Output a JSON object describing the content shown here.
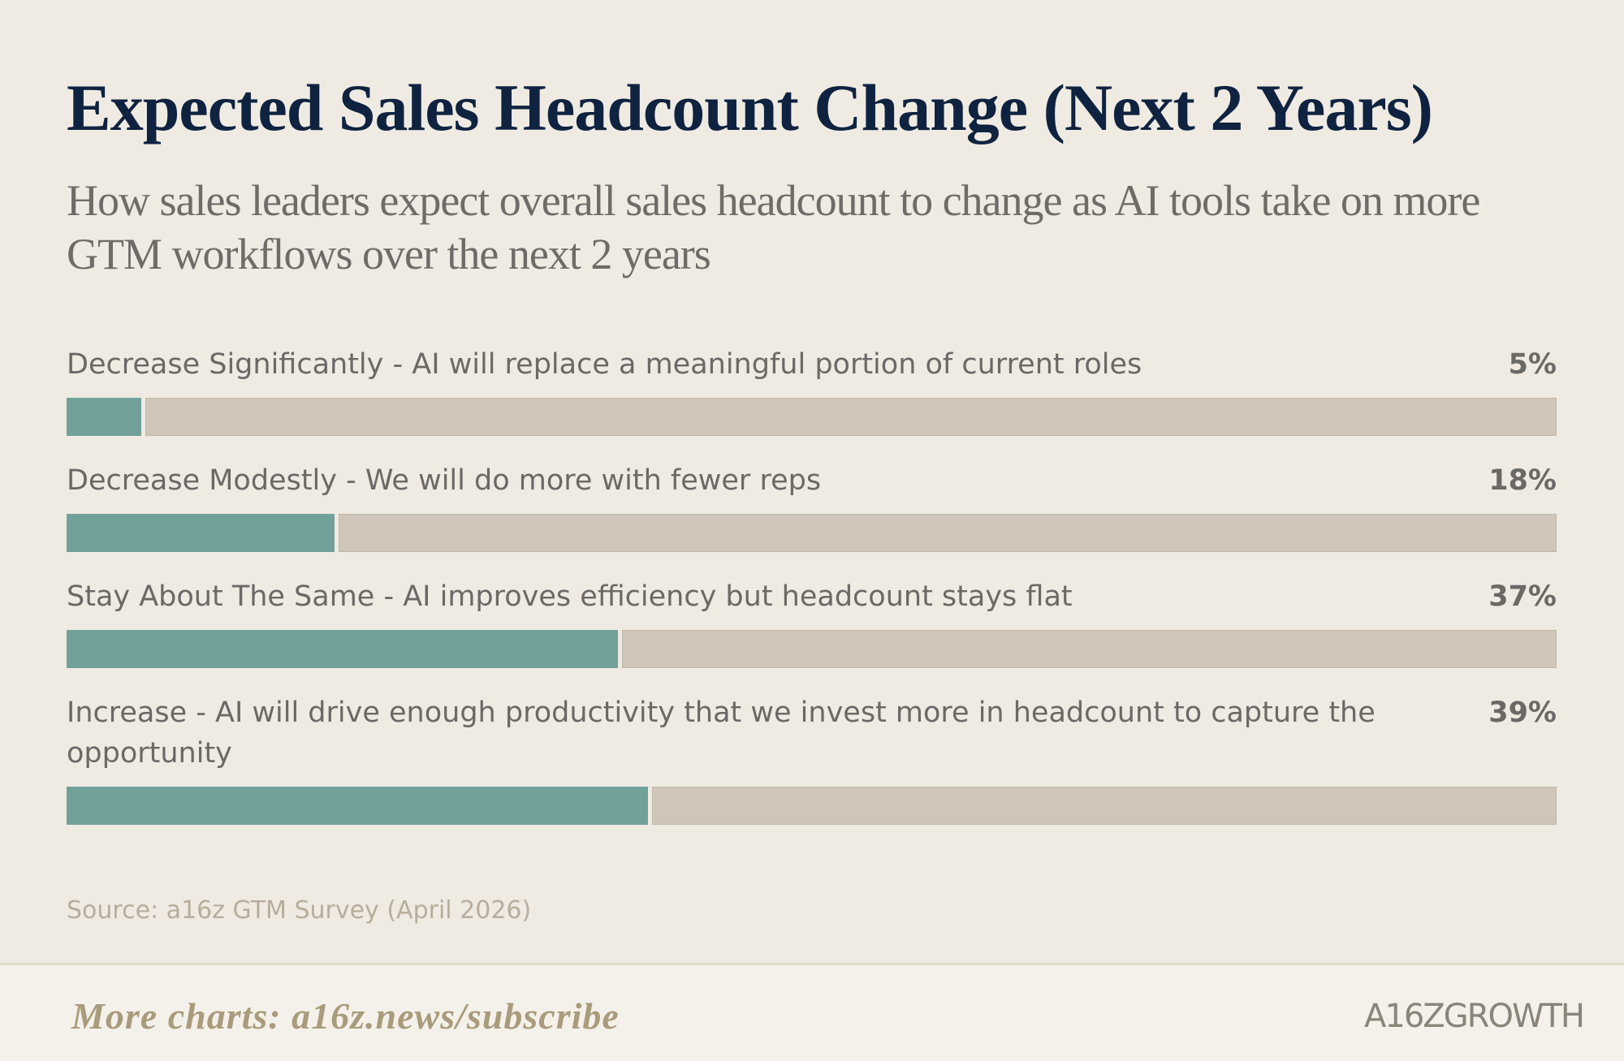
{
  "chart_data": {
    "type": "bar",
    "orientation": "horizontal",
    "title": "Expected Sales Headcount Change (Next 2 Years)",
    "subtitle": "How sales leaders expect overall sales headcount to change as AI tools take on more GTM workflows over the next 2 years",
    "categories": [
      "Decrease Significantly - AI will replace a meaningful portion of current roles",
      "Decrease Modestly - We will do more with fewer reps",
      "Stay About The Same - AI improves efficiency but headcount stays flat",
      "Increase - AI will drive enough productivity that we invest more in headcount to capture the opportunity"
    ],
    "values": [
      5,
      18,
      37,
      39
    ],
    "value_labels": [
      "5%",
      "18%",
      "37%",
      "39%"
    ],
    "xlim": [
      0,
      100
    ],
    "color": "#72a19a",
    "track_color": "#cfc6b9",
    "source": "Source: a16z GTM Survey (April 2026)",
    "footer_link": "More charts: a16z.news/subscribe",
    "logo": "A16ZGROWTH"
  }
}
